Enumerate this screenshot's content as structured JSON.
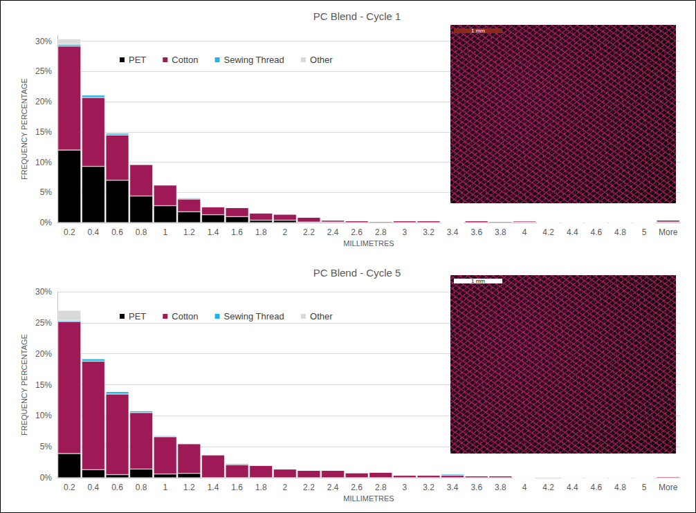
{
  "chart_data": [
    {
      "type": "bar",
      "title": "PC Blend - Cycle 1",
      "x_label": "MILLIMETRES",
      "y_label": "FREQUENCY PERCENTAGE",
      "annotations": [
        "1 mm"
      ],
      "categories": [
        "0.2",
        "0.4",
        "0.6",
        "0.8",
        "1",
        "1.2",
        "1.4",
        "1.6",
        "1.8",
        "2",
        "2.2",
        "2.4",
        "2.6",
        "2.8",
        "3",
        "3.2",
        "3.4",
        "3.6",
        "3.8",
        "4",
        "4.2",
        "4.4",
        "4.6",
        "4.8",
        "5",
        "More"
      ],
      "series": [
        {
          "name": "PET",
          "color": "#000000",
          "values": [
            12,
            9.3,
            7,
            4.4,
            2.8,
            1.8,
            1.3,
            1.0,
            0.4,
            0.4,
            0.1,
            0.1,
            0,
            0,
            0,
            0,
            0,
            0,
            0,
            0.1,
            0,
            0,
            0,
            0,
            0,
            0.1
          ]
        },
        {
          "name": "Cotton",
          "color": "#9e1a57",
          "values": [
            17.2,
            11.4,
            7.5,
            5.2,
            3.4,
            2.1,
            1.3,
            1.5,
            1.2,
            1.0,
            0.8,
            0.3,
            0.3,
            0.2,
            0.3,
            0.3,
            0,
            0.3,
            0.2,
            0.2,
            0,
            0,
            0,
            0,
            0,
            0.3
          ]
        },
        {
          "name": "Sewing Thread",
          "color": "#1eb4e6",
          "values": [
            0.3,
            0.4,
            0.3,
            0.1,
            0.1,
            0.2,
            0.1,
            0,
            0,
            0,
            0,
            0,
            0,
            0,
            0,
            0,
            0,
            0,
            0,
            0,
            0,
            0,
            0,
            0,
            0,
            0.1
          ]
        },
        {
          "name": "Other",
          "color": "#d9d9d9",
          "values": [
            0.9,
            0,
            0,
            0,
            0,
            0,
            0,
            0,
            0,
            0,
            0,
            0,
            0,
            0,
            0,
            0,
            0,
            0,
            0,
            0,
            0,
            0,
            0,
            0,
            0,
            0
          ]
        }
      ],
      "ylim": [
        0,
        31
      ],
      "yticks": [
        {
          "value": 0,
          "label": "0%"
        },
        {
          "value": 5,
          "label": "5%"
        },
        {
          "value": 10,
          "label": "10%"
        },
        {
          "value": 15,
          "label": "15%"
        },
        {
          "value": 20,
          "label": "20%"
        },
        {
          "value": 25,
          "label": "25%"
        },
        {
          "value": 30,
          "label": "30%"
        }
      ],
      "grid": true,
      "legend": "top",
      "stacked": true
    },
    {
      "type": "bar",
      "title": "PC Blend - Cycle 5",
      "x_label": "MILLIMETRES",
      "y_label": "FREQUENCY PERCENTAGE",
      "annotations": [
        "1 mm"
      ],
      "categories": [
        "0.2",
        "0.4",
        "0.6",
        "0.8",
        "1",
        "1.2",
        "1.4",
        "1.6",
        "1.8",
        "2",
        "2.2",
        "2.4",
        "2.6",
        "2.8",
        "3",
        "3.2",
        "3.4",
        "3.6",
        "3.8",
        "4",
        "4.2",
        "4.4",
        "4.6",
        "4.8",
        "5",
        "More"
      ],
      "series": [
        {
          "name": "PET",
          "color": "#000000",
          "values": [
            3.9,
            1.3,
            0.5,
            1.4,
            0.6,
            0.7,
            0,
            0,
            0,
            0,
            0,
            0,
            0,
            0,
            0,
            0,
            0,
            0,
            0,
            0,
            0,
            0,
            0,
            0,
            0,
            0
          ]
        },
        {
          "name": "Cotton",
          "color": "#9e1a57",
          "values": [
            21.3,
            17.5,
            13,
            9.1,
            6.0,
            4.8,
            3.7,
            2.1,
            2.0,
            1.4,
            1.2,
            1.2,
            0.8,
            0.9,
            0.4,
            0.4,
            0.4,
            0.3,
            0.3,
            0,
            0.1,
            0,
            0,
            0,
            0,
            0.2
          ]
        },
        {
          "name": "Sewing Thread",
          "color": "#1eb4e6",
          "values": [
            0.2,
            0.4,
            0.4,
            0.3,
            0.2,
            0,
            0,
            0.2,
            0,
            0,
            0,
            0,
            0,
            0,
            0,
            0,
            0.2,
            0,
            0,
            0,
            0,
            0,
            0,
            0,
            0,
            0
          ]
        },
        {
          "name": "Other",
          "color": "#d9d9d9",
          "values": [
            1.6,
            0,
            0,
            0,
            0,
            0,
            0,
            0,
            0,
            0,
            0,
            0,
            0,
            0,
            0,
            0,
            0,
            0,
            0,
            0,
            0,
            0,
            0,
            0,
            0,
            0
          ]
        }
      ],
      "ylim": [
        0,
        30
      ],
      "yticks": [
        {
          "value": 0,
          "label": "0%"
        },
        {
          "value": 5,
          "label": "5%"
        },
        {
          "value": 10,
          "label": "10%"
        },
        {
          "value": 15,
          "label": "15%"
        },
        {
          "value": 20,
          "label": "20%"
        },
        {
          "value": 25,
          "label": "25%"
        },
        {
          "value": 30,
          "label": "30%"
        }
      ],
      "grid": true,
      "legend": "top",
      "stacked": true
    }
  ]
}
